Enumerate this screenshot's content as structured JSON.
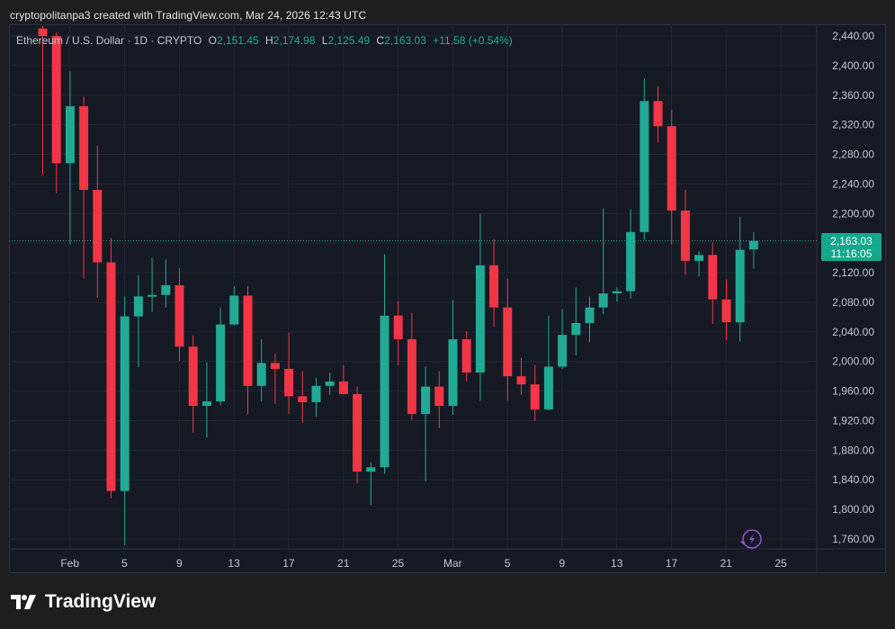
{
  "caption": "cryptopolitanpa3 created with TradingView.com, Mar 24, 2026 12:43 UTC",
  "legend": {
    "symbol": "Ethereum / U.S. Dollar · 1D · CRYPTO",
    "o_label": "O",
    "o": "2,151.45",
    "h_label": "H",
    "h": "2,174.98",
    "l_label": "L",
    "l": "2,125.49",
    "c_label": "C",
    "c": "2,163.03",
    "change": "+11.58 (+0.54%)"
  },
  "last_price": {
    "price": "2,163.03",
    "countdown": "11:16:05"
  },
  "brand": {
    "name": "TradingView",
    "icon": "tradingview-logo-icon"
  },
  "colors": {
    "up": "#22ab94",
    "down": "#f23645",
    "bg": "#161a25",
    "grid": "#232734"
  },
  "chart_data": {
    "type": "candlestick",
    "title": "Ethereum / U.S. Dollar · 1D · CRYPTO",
    "ylim": [
      1745,
      2450
    ],
    "y_ticks": [
      "2,440.00",
      "2,400.00",
      "2,360.00",
      "2,320.00",
      "2,280.00",
      "2,240.00",
      "2,200.00",
      "2,160.00",
      "2,120.00",
      "2,080.00",
      "2,040.00",
      "2,000.00",
      "1,960.00",
      "1,920.00",
      "1,880.00",
      "1,840.00",
      "1,800.00",
      "1,760.00"
    ],
    "x_ticks": [
      {
        "label": "Feb",
        "index": 1
      },
      {
        "label": "5",
        "index": 5
      },
      {
        "label": "9",
        "index": 9
      },
      {
        "label": "13",
        "index": 13
      },
      {
        "label": "17",
        "index": 17
      },
      {
        "label": "21",
        "index": 21
      },
      {
        "label": "25",
        "index": 25
      },
      {
        "label": "Mar",
        "index": 29
      },
      {
        "label": "5",
        "index": 33
      },
      {
        "label": "9",
        "index": 37
      },
      {
        "label": "13",
        "index": 41
      },
      {
        "label": "17",
        "index": 45
      },
      {
        "label": "21",
        "index": 49
      },
      {
        "label": "25",
        "index": 53
      }
    ],
    "candles": [
      {
        "o": 2450,
        "h": 2470,
        "l": 2252,
        "c": 2440
      },
      {
        "o": 2440,
        "h": 2445,
        "l": 2228,
        "c": 2268
      },
      {
        "o": 2268,
        "h": 2392,
        "l": 2158,
        "c": 2345
      },
      {
        "o": 2345,
        "h": 2358,
        "l": 2112,
        "c": 2232
      },
      {
        "o": 2232,
        "h": 2292,
        "l": 2086,
        "c": 2134
      },
      {
        "o": 2134,
        "h": 2167,
        "l": 1815,
        "c": 1825
      },
      {
        "o": 1825,
        "h": 2088,
        "l": 1752,
        "c": 2061
      },
      {
        "o": 2061,
        "h": 2117,
        "l": 1992,
        "c": 2088
      },
      {
        "o": 2088,
        "h": 2140,
        "l": 2067,
        "c": 2090
      },
      {
        "o": 2090,
        "h": 2138,
        "l": 2073,
        "c": 2103
      },
      {
        "o": 2103,
        "h": 2126,
        "l": 2001,
        "c": 2020
      },
      {
        "o": 2020,
        "h": 2035,
        "l": 1904,
        "c": 1940
      },
      {
        "o": 1940,
        "h": 1999,
        "l": 1897,
        "c": 1946
      },
      {
        "o": 1946,
        "h": 2073,
        "l": 1941,
        "c": 2050
      },
      {
        "o": 2050,
        "h": 2102,
        "l": 2049,
        "c": 2089
      },
      {
        "o": 2089,
        "h": 2102,
        "l": 1928,
        "c": 1967
      },
      {
        "o": 1967,
        "h": 2030,
        "l": 1946,
        "c": 1998
      },
      {
        "o": 1998,
        "h": 2011,
        "l": 1943,
        "c": 1990
      },
      {
        "o": 1990,
        "h": 2039,
        "l": 1929,
        "c": 1953
      },
      {
        "o": 1953,
        "h": 1987,
        "l": 1917,
        "c": 1945
      },
      {
        "o": 1945,
        "h": 1978,
        "l": 1925,
        "c": 1967
      },
      {
        "o": 1967,
        "h": 1985,
        "l": 1955,
        "c": 1973
      },
      {
        "o": 1973,
        "h": 1995,
        "l": 1958,
        "c": 1956
      },
      {
        "o": 1956,
        "h": 1966,
        "l": 1835,
        "c": 1851
      },
      {
        "o": 1851,
        "h": 1864,
        "l": 1806,
        "c": 1857
      },
      {
        "o": 1857,
        "h": 2145,
        "l": 1848,
        "c": 2062
      },
      {
        "o": 2062,
        "h": 2082,
        "l": 1995,
        "c": 2030
      },
      {
        "o": 2030,
        "h": 2066,
        "l": 1921,
        "c": 1929
      },
      {
        "o": 1929,
        "h": 1993,
        "l": 1838,
        "c": 1966
      },
      {
        "o": 1966,
        "h": 1987,
        "l": 1910,
        "c": 1940
      },
      {
        "o": 1940,
        "h": 2083,
        "l": 1928,
        "c": 2030
      },
      {
        "o": 2030,
        "h": 2041,
        "l": 1973,
        "c": 1985
      },
      {
        "o": 1985,
        "h": 2200,
        "l": 1947,
        "c": 2130
      },
      {
        "o": 2130,
        "h": 2165,
        "l": 2047,
        "c": 2073
      },
      {
        "o": 2073,
        "h": 2112,
        "l": 1947,
        "c": 1980
      },
      {
        "o": 1980,
        "h": 2005,
        "l": 1955,
        "c": 1969
      },
      {
        "o": 1969,
        "h": 1995,
        "l": 1920,
        "c": 1935
      },
      {
        "o": 1935,
        "h": 2062,
        "l": 1934,
        "c": 1993
      },
      {
        "o": 1993,
        "h": 2071,
        "l": 1990,
        "c": 2036
      },
      {
        "o": 2036,
        "h": 2100,
        "l": 2008,
        "c": 2052
      },
      {
        "o": 2052,
        "h": 2088,
        "l": 2026,
        "c": 2073
      },
      {
        "o": 2073,
        "h": 2207,
        "l": 2064,
        "c": 2092
      },
      {
        "o": 2092,
        "h": 2100,
        "l": 2081,
        "c": 2095
      },
      {
        "o": 2095,
        "h": 2206,
        "l": 2085,
        "c": 2175
      },
      {
        "o": 2175,
        "h": 2383,
        "l": 2165,
        "c": 2352
      },
      {
        "o": 2352,
        "h": 2372,
        "l": 2296,
        "c": 2318
      },
      {
        "o": 2318,
        "h": 2340,
        "l": 2158,
        "c": 2204
      },
      {
        "o": 2204,
        "h": 2232,
        "l": 2117,
        "c": 2136
      },
      {
        "o": 2136,
        "h": 2149,
        "l": 2115,
        "c": 2144
      },
      {
        "o": 2144,
        "h": 2161,
        "l": 2051,
        "c": 2084
      },
      {
        "o": 2084,
        "h": 2111,
        "l": 2029,
        "c": 2053
      },
      {
        "o": 2053,
        "h": 2196,
        "l": 2027,
        "c": 2151
      },
      {
        "o": 2151.45,
        "h": 2174.98,
        "l": 2125.49,
        "c": 2163.03
      }
    ]
  }
}
